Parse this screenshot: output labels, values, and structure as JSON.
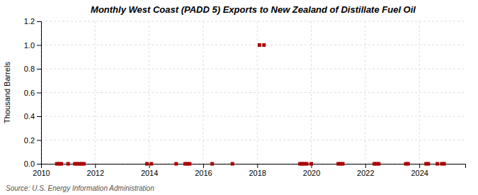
{
  "chart_data": {
    "type": "scatter",
    "title": "Monthly West Coast (PADD 5) Exports to New Zealand of Distillate Fuel Oil",
    "y_label": "Thousand Barrels",
    "source": "Source: U.S. Energy Information Administration",
    "color": "#aa0000",
    "marker": "square",
    "grid": true,
    "xlim": [
      2010.0,
      2025.7
    ],
    "xticks": [
      2010,
      2012,
      2014,
      2016,
      2018,
      2020,
      2022,
      2024
    ],
    "ylim": [
      0.0,
      1.2
    ],
    "yticks": [
      {
        "value": 0.0,
        "label": "0.0"
      },
      {
        "value": 0.2,
        "label": "0.2"
      },
      {
        "value": 0.4,
        "label": "0.4"
      },
      {
        "value": 0.6,
        "label": "0.6"
      },
      {
        "value": 0.8,
        "label": "0.8"
      },
      {
        "value": 1.0,
        "label": "1.0"
      },
      {
        "value": 1.2,
        "label": "1.2"
      }
    ],
    "x": [
      2010.583,
      2010.667,
      2010.75,
      2011.0,
      2011.25,
      2011.333,
      2011.417,
      2011.5,
      2011.583,
      2013.917,
      2014.083,
      2015.0,
      2015.333,
      2015.417,
      2015.5,
      2016.333,
      2017.083,
      2018.083,
      2018.25,
      2019.583,
      2019.667,
      2019.75,
      2019.833,
      2020.0,
      2021.0,
      2021.083,
      2021.167,
      2022.333,
      2022.417,
      2022.5,
      2023.5,
      2023.583,
      2024.25,
      2024.333,
      2024.667,
      2024.833,
      2024.917
    ],
    "values": [
      0.0,
      0.0,
      0.0,
      0.0,
      0.0,
      0.0,
      0.0,
      0.0,
      0.0,
      0.0,
      0.0,
      0.0,
      0.0,
      0.0,
      0.0,
      0.0,
      0.0,
      1.0,
      1.0,
      0.0,
      0.0,
      0.0,
      0.0,
      0.0,
      0.0,
      0.0,
      0.0,
      0.0,
      0.0,
      0.0,
      0.0,
      0.0,
      0.0,
      0.0,
      0.0,
      0.0,
      0.0
    ]
  }
}
